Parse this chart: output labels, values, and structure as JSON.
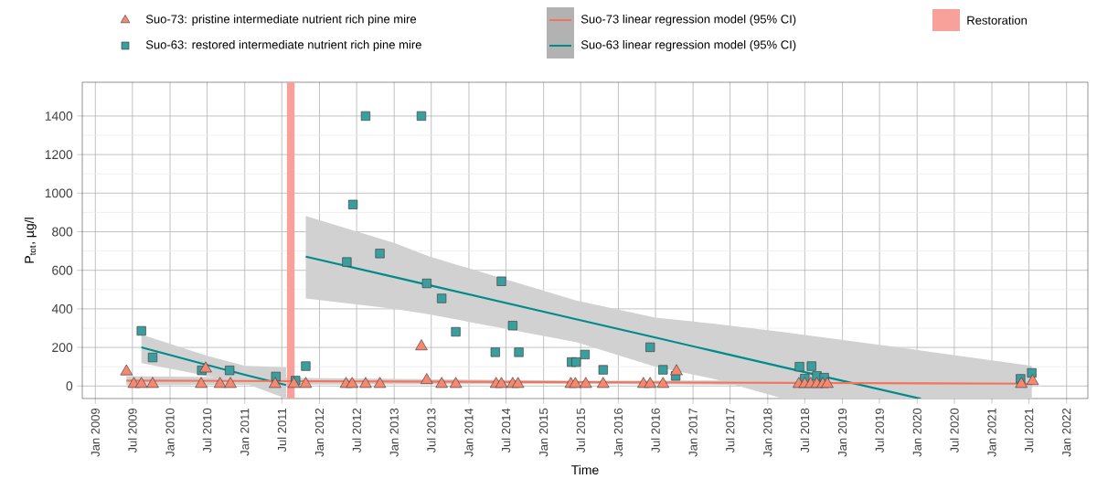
{
  "chart_data": {
    "type": "scatter",
    "xlabel": "Time",
    "ylabel": "P$_{tot}$, µg/l",
    "xlim": [
      "2008-10-29",
      "2022-04-15"
    ],
    "ylim": [
      -65,
      1575
    ],
    "xticks": [
      {
        "value": "2009-01-01",
        "label": "Jan 2009"
      },
      {
        "value": "2009-07-01",
        "label": "Jul 2009"
      },
      {
        "value": "2010-01-01",
        "label": "Jan 2010"
      },
      {
        "value": "2010-07-01",
        "label": "Jul 2010"
      },
      {
        "value": "2011-01-01",
        "label": "Jan 2011"
      },
      {
        "value": "2011-07-01",
        "label": "Jul 2011"
      },
      {
        "value": "2012-01-01",
        "label": "Jan 2012"
      },
      {
        "value": "2012-07-01",
        "label": "Jul 2012"
      },
      {
        "value": "2013-01-01",
        "label": "Jan 2013"
      },
      {
        "value": "2013-07-01",
        "label": "Jul 2013"
      },
      {
        "value": "2014-01-01",
        "label": "Jan 2014"
      },
      {
        "value": "2014-07-01",
        "label": "Jul 2014"
      },
      {
        "value": "2015-01-01",
        "label": "Jan 2015"
      },
      {
        "value": "2015-07-01",
        "label": "Jul 2015"
      },
      {
        "value": "2016-01-01",
        "label": "Jan 2016"
      },
      {
        "value": "2016-07-01",
        "label": "Jul 2016"
      },
      {
        "value": "2017-01-01",
        "label": "Jan 2017"
      },
      {
        "value": "2017-07-01",
        "label": "Jul 2017"
      },
      {
        "value": "2018-01-01",
        "label": "Jan 2018"
      },
      {
        "value": "2018-07-01",
        "label": "Jul 2018"
      },
      {
        "value": "2019-01-01",
        "label": "Jan 2019"
      },
      {
        "value": "2019-07-01",
        "label": "Jul 2019"
      },
      {
        "value": "2020-01-01",
        "label": "Jan 2020"
      },
      {
        "value": "2020-07-01",
        "label": "Jul 2020"
      },
      {
        "value": "2021-01-01",
        "label": "Jan 2021"
      },
      {
        "value": "2021-07-01",
        "label": "Jul 2021"
      },
      {
        "value": "2022-01-01",
        "label": "Jan 2022"
      }
    ],
    "yticks": [
      0,
      200,
      400,
      600,
      800,
      1000,
      1200,
      1400
    ],
    "grid": true,
    "legend": "top",
    "bands": [
      {
        "axis": "x",
        "from": "2011-07-26",
        "to": "2011-09-02",
        "label": "Restoration",
        "color": "#f8a09a"
      }
    ],
    "series": [
      {
        "name": "Suo-73: pristine intermediate nutrient rich pine mire",
        "marker": "triangle",
        "color": "#f8876f",
        "x": [
          "2009-06-02",
          "2009-07-08",
          "2009-08-14",
          "2009-10-08",
          "2010-06-02",
          "2010-06-24",
          "2010-09-02",
          "2010-10-23",
          "2011-05-29",
          "2011-08-29",
          "2011-10-26",
          "2012-05-10",
          "2012-06-09",
          "2012-08-14",
          "2012-10-23",
          "2013-05-14",
          "2013-06-09",
          "2013-08-21",
          "2013-10-29",
          "2014-05-14",
          "2014-06-09",
          "2014-08-03",
          "2014-08-29",
          "2015-05-14",
          "2015-06-05",
          "2015-07-26",
          "2015-10-19",
          "2016-05-03",
          "2016-06-05",
          "2016-08-07",
          "2016-10-12",
          "2018-06-02",
          "2018-07-01",
          "2018-07-30",
          "2018-08-29",
          "2018-09-27",
          "2018-10-19",
          "2021-05-25",
          "2021-07-19"
        ],
        "values": [
          75,
          10,
          10,
          10,
          10,
          90,
          10,
          10,
          10,
          10,
          10,
          10,
          10,
          10,
          10,
          205,
          30,
          10,
          10,
          10,
          10,
          10,
          10,
          10,
          10,
          10,
          10,
          10,
          10,
          10,
          76,
          10,
          10,
          10,
          10,
          10,
          10,
          10,
          25
        ]
      },
      {
        "name": "Suo-63: restored intermediate nutrient rich pine mire",
        "marker": "square",
        "color": "#3a9e9e",
        "x": [
          "2009-08-14",
          "2009-10-08",
          "2010-06-05",
          "2010-06-24",
          "2010-10-19",
          "2011-06-02",
          "2011-09-06",
          "2011-10-26",
          "2012-05-14",
          "2012-06-13",
          "2012-08-14",
          "2012-10-23",
          "2013-05-14",
          "2013-06-09",
          "2013-08-21",
          "2013-10-29",
          "2014-05-10",
          "2014-06-09",
          "2014-08-03",
          "2014-09-02",
          "2015-05-18",
          "2015-06-09",
          "2015-07-22",
          "2015-10-19",
          "2016-06-05",
          "2016-08-07",
          "2016-10-08",
          "2018-06-05",
          "2018-07-01",
          "2018-08-03",
          "2018-08-29",
          "2018-10-04",
          "2021-05-21",
          "2021-07-15"
        ],
        "values": [
          286,
          148,
          81,
          null,
          81,
          49,
          28,
          103,
          643,
          941,
          1400,
          687,
          1400,
          532,
          454,
          281,
          175,
          543,
          313,
          175,
          124,
          124,
          163,
          84,
          201,
          84,
          52,
          100,
          38,
          103,
          52,
          43,
          37,
          68
        ]
      },
      {
        "name": "Suo-73 linear regression model (95% CI)",
        "type": "line",
        "color": "#f4735a",
        "x": [
          "2009-06-02",
          "2015-07-01",
          "2021-07-19"
        ],
        "values": [
          28,
          20,
          12
        ],
        "lower": [
          5,
          12,
          -8
        ],
        "upper": [
          51,
          28,
          32
        ]
      },
      {
        "name": "Suo-63 linear regression model (95% CI)",
        "type": "line",
        "color": "#008b8b",
        "x": [
          "2011-10-26",
          "2012-12-28",
          "2013-06-24",
          "2015-06-09",
          "2016-07-01",
          "2017-04-08",
          "2018-03-16",
          "2020-01-01",
          "2020-01-19",
          "2021-07-15"
        ],
        "values": [
          671,
          566,
          522,
          346,
          251,
          182,
          98,
          -62,
          -65,
          null
        ],
        "lower": [
          454,
          401,
          371,
          228,
          100,
          38,
          -65,
          -65,
          -65,
          -65
        ],
        "upper": [
          882,
          743,
          671,
          443,
          354,
          324,
          280,
          187,
          184,
          105
        ]
      },
      {
        "type": "line",
        "color": "#008b8b",
        "x": [
          "2009-08-14",
          "2010-07-01",
          "2011-01-01",
          "2011-07-22"
        ],
        "values": [
          200,
          109,
          58,
          5
        ],
        "lower": [
          119,
          52,
          14,
          -65
        ],
        "upper": [
          267,
          157,
          105,
          97
        ]
      }
    ]
  }
}
